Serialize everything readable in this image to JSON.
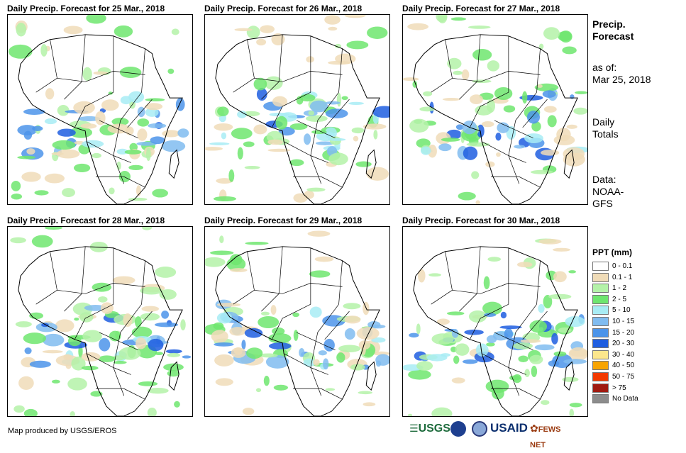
{
  "panels": [
    {
      "title": "Daily Precip. Forecast for 25 Mar., 2018"
    },
    {
      "title": "Daily Precip. Forecast for 26 Mar., 2018"
    },
    {
      "title": "Daily Precip. Forecast for 27 Mar., 2018"
    },
    {
      "title": "Daily Precip. Forecast for 28 Mar., 2018"
    },
    {
      "title": "Daily Precip. Forecast for 29 Mar., 2018"
    },
    {
      "title": "Daily Precip. Forecast for 30 Mar., 2018"
    }
  ],
  "sidebar": {
    "heading_line1": "Precip.",
    "heading_line2": "Forecast",
    "asof_line1": "as of:",
    "asof_line2": "Mar 25, 2018",
    "totals_line1": "Daily",
    "totals_line2": "Totals",
    "source_line1": "Data:",
    "source_line2": "NOAA-",
    "source_line3": "GFS"
  },
  "legend": {
    "title": "PPT (mm)",
    "items": [
      {
        "label": "0 - 0.1",
        "color": "#ffffff"
      },
      {
        "label": "0.1 - 1",
        "color": "#f0dcb8"
      },
      {
        "label": "1 - 2",
        "color": "#b4f2a8"
      },
      {
        "label": "2 - 5",
        "color": "#6ee66e"
      },
      {
        "label": "5 - 10",
        "color": "#a8ecf4"
      },
      {
        "label": "10 - 15",
        "color": "#80bcf0"
      },
      {
        "label": "15 - 20",
        "color": "#4c94ea"
      },
      {
        "label": "20 - 30",
        "color": "#1f5ee0"
      },
      {
        "label": "30 - 40",
        "color": "#fce68c"
      },
      {
        "label": "40 - 50",
        "color": "#f8a400"
      },
      {
        "label": "50 - 75",
        "color": "#f23a00"
      },
      {
        "label": "> 75",
        "color": "#a01a10"
      },
      {
        "label": "No Data",
        "color": "#8c8c8c"
      }
    ]
  },
  "footer": {
    "credit": "Map produced by USGS/EROS",
    "logo_usgs": "USGS",
    "logo_usaid": "USAID",
    "logo_fewsnet": "FEWS NET"
  }
}
